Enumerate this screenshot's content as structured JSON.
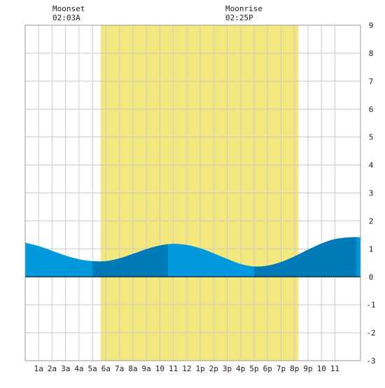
{
  "header": {
    "moonset_label": "Moonset",
    "moonset_time": "02:03A",
    "moonrise_label": "Moonrise",
    "moonrise_time": "02:25P"
  },
  "chart_data": {
    "type": "area",
    "title": "",
    "xlabel": "",
    "ylabel": "",
    "x_unit": "hours after midnight",
    "xlim": [
      -1,
      23.9
    ],
    "ylim": [
      -3,
      9
    ],
    "y_ticks": [
      -3,
      -2,
      -1,
      0,
      1,
      2,
      3,
      4,
      5,
      6,
      7,
      8,
      9
    ],
    "x_ticks": [
      0,
      1,
      2,
      3,
      4,
      5,
      6,
      7,
      8,
      9,
      10,
      11,
      12,
      13,
      14,
      15,
      16,
      17,
      18,
      19,
      20,
      21,
      22
    ],
    "x_tick_labels": [
      "1a",
      "2a",
      "3a",
      "4a",
      "5a",
      "6a",
      "7a",
      "8a",
      "9a",
      "10",
      "11",
      "12",
      "1p",
      "2p",
      "3p",
      "4p",
      "5p",
      "6p",
      "7p",
      "8p",
      "9p",
      "10",
      "11"
    ],
    "grid": true,
    "daylight_span": [
      4.6,
      19.3
    ],
    "dark_bands": [
      [
        4.0,
        9.6
      ],
      [
        16.0,
        23.6
      ]
    ],
    "tide_curve": {
      "x": [
        -1,
        0,
        1,
        2,
        3,
        4,
        5,
        6,
        7,
        8,
        9,
        10,
        11,
        12,
        13,
        14,
        15,
        16,
        17,
        18,
        19,
        20,
        21,
        22,
        23,
        23.9
      ],
      "y": [
        1.22,
        1.1,
        0.93,
        0.76,
        0.63,
        0.56,
        0.56,
        0.66,
        0.82,
        0.99,
        1.12,
        1.18,
        1.14,
        1.02,
        0.84,
        0.64,
        0.46,
        0.37,
        0.4,
        0.53,
        0.73,
        0.97,
        1.19,
        1.35,
        1.41,
        1.42
      ]
    },
    "colors": {
      "daylight": "#f2e87e",
      "tide": "#0099dd",
      "tide_dark": "#007bb8",
      "grid": "#cccccc",
      "frame": "#999999",
      "zero_line": "#000000"
    }
  }
}
